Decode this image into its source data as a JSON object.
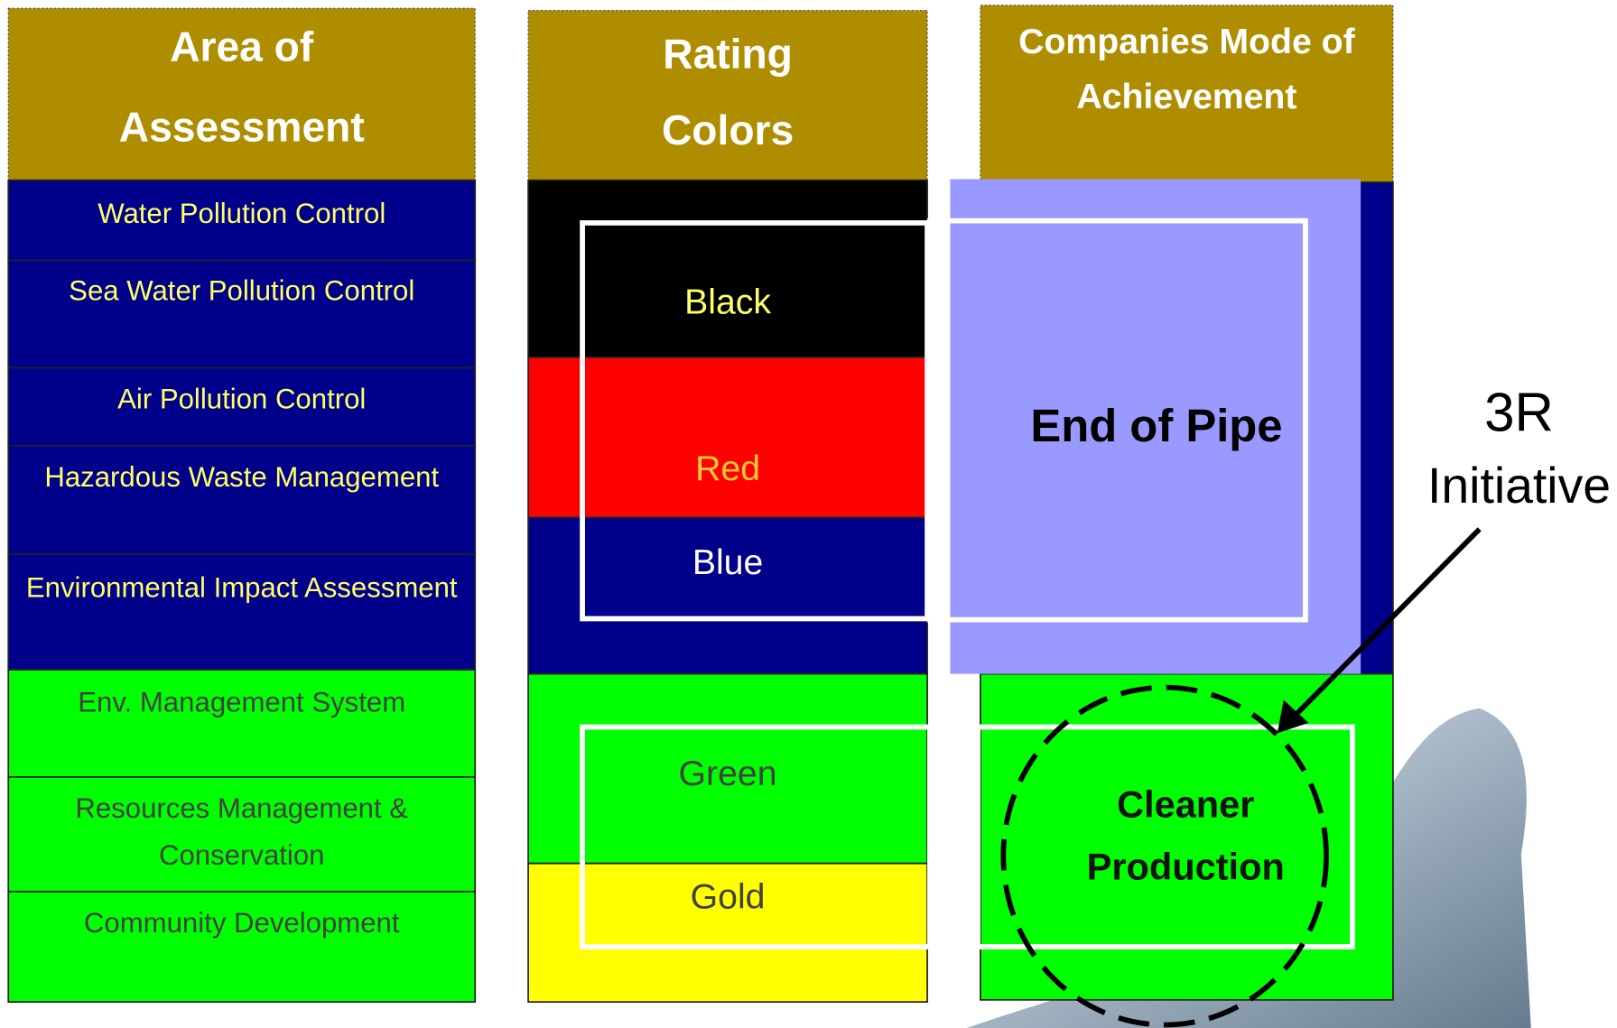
{
  "columns": [
    {
      "header": [
        "Area of",
        "Assessment"
      ],
      "rows": [
        [
          "Water Pollution  Control"
        ],
        [
          "Sea Water Pollution Control"
        ],
        [
          "Air Pollution Control"
        ],
        [
          "Hazardous Waste Management"
        ],
        [
          "Environmental Impact Assessment"
        ],
        [
          "Env. Management System"
        ],
        [
          "Resources Management &",
          "Conservation"
        ],
        [
          "Community Development"
        ]
      ]
    },
    {
      "header": [
        "Rating",
        "Colors"
      ],
      "rows": [
        [
          "Black"
        ],
        [
          "Red"
        ],
        [
          "Blue"
        ],
        [
          "Green"
        ],
        [
          "Gold"
        ]
      ]
    },
    {
      "header": [
        "Companies Mode of",
        "Achievement"
      ]
    }
  ],
  "end_of_pipe": "End of Pipe",
  "cleaner_production": [
    "Cleaner",
    "Production"
  ],
  "callout": [
    "3R",
    "Initiative"
  ]
}
